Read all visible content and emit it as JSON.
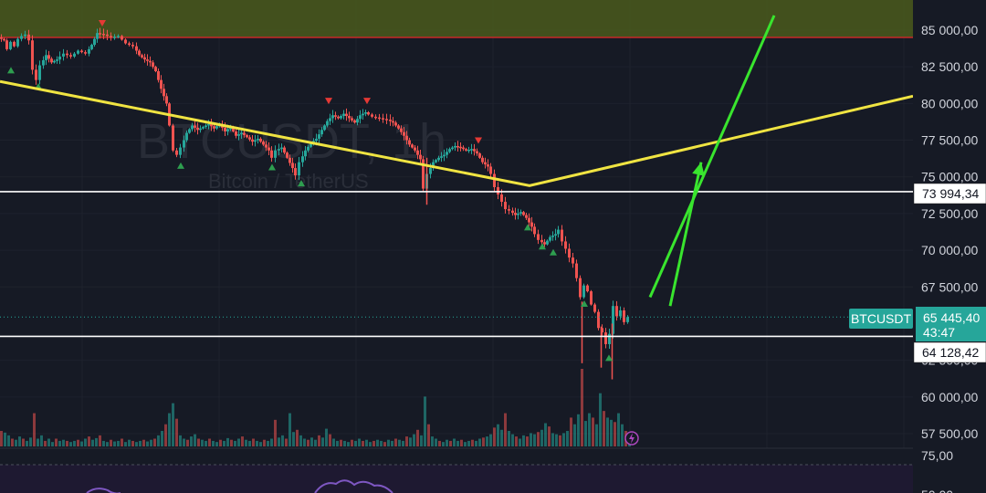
{
  "watermark": {
    "symbol": "BTCUSDT, 1h",
    "name": "Bitcoin / TetherUS"
  },
  "colors": {
    "background": "#161a25",
    "bull": "#26a69a",
    "bear": "#ef5350",
    "trendline": "#f0e442",
    "arrow": "#39e52e",
    "zone_fill": "#4a5a1c",
    "zone_border": "#c62828",
    "level_line": "#ffffff",
    "rsi_band": "#1f1a33",
    "rsi_line": "#7e57c2"
  },
  "price_axis": {
    "ticks": [
      {
        "value": 85000,
        "label": "85 000,00"
      },
      {
        "value": 82500,
        "label": "82 500,00"
      },
      {
        "value": 80000,
        "label": "80 000,00"
      },
      {
        "value": 77500,
        "label": "77 500,00"
      },
      {
        "value": 75000,
        "label": "75 000,00"
      },
      {
        "value": 72500,
        "label": "72 500,00"
      },
      {
        "value": 70000,
        "label": "70 000,00"
      },
      {
        "value": 67500,
        "label": "67 500,00"
      },
      {
        "value": 62500,
        "label": "62 500,00"
      },
      {
        "value": 60000,
        "label": "60 000,00"
      },
      {
        "value": 57500,
        "label": "57 500,00"
      }
    ],
    "rsi_ticks": [
      {
        "value": 75,
        "label": "75,00"
      },
      {
        "value": 50,
        "label": "50,00"
      }
    ]
  },
  "price_tags": [
    {
      "id": "level-upper",
      "value": 73994.34,
      "label": "73 994,34",
      "style": "white"
    },
    {
      "id": "level-lower",
      "value": 64128.42,
      "label": "64 128,42",
      "style": "white"
    }
  ],
  "current_price": {
    "symbol": "BTCUSDT",
    "value": 65445.4,
    "label": "65 445,40",
    "countdown": "43:47"
  },
  "chart_data": {
    "type": "candlestick",
    "title": "BTCUSDT, 1h",
    "subtitle": "Bitcoin / TetherUS",
    "ylim": [
      56500,
      86000
    ],
    "close_path": [
      [
        0,
        84500
      ],
      [
        6,
        84300
      ],
      [
        10,
        83700
      ],
      [
        14,
        84200
      ],
      [
        18,
        83900
      ],
      [
        22,
        84400
      ],
      [
        26,
        84600
      ],
      [
        30,
        84700
      ],
      [
        34,
        84300
      ],
      [
        38,
        82300
      ],
      [
        42,
        81600
      ],
      [
        46,
        82600
      ],
      [
        52,
        83300
      ],
      [
        58,
        82800
      ],
      [
        64,
        83000
      ],
      [
        72,
        83400
      ],
      [
        80,
        83200
      ],
      [
        88,
        83600
      ],
      [
        96,
        83400
      ],
      [
        102,
        84000
      ],
      [
        108,
        84800
      ],
      [
        116,
        84700
      ],
      [
        124,
        84500
      ],
      [
        132,
        84600
      ],
      [
        140,
        84100
      ],
      [
        148,
        83900
      ],
      [
        154,
        83300
      ],
      [
        160,
        83000
      ],
      [
        166,
        82800
      ],
      [
        172,
        82200
      ],
      [
        178,
        81000
      ],
      [
        184,
        80000
      ],
      [
        188,
        78500
      ],
      [
        192,
        76800
      ],
      [
        196,
        76500
      ],
      [
        200,
        77000
      ],
      [
        206,
        78000
      ],
      [
        212,
        78500
      ],
      [
        218,
        78200
      ],
      [
        224,
        78400
      ],
      [
        230,
        78600
      ],
      [
        236,
        78300
      ],
      [
        242,
        78600
      ],
      [
        248,
        78100
      ],
      [
        254,
        78400
      ],
      [
        260,
        77800
      ],
      [
        266,
        78000
      ],
      [
        272,
        77700
      ],
      [
        278,
        77400
      ],
      [
        284,
        77600
      ],
      [
        290,
        77200
      ],
      [
        296,
        76800
      ],
      [
        300,
        76300
      ],
      [
        304,
        76800
      ],
      [
        310,
        77000
      ],
      [
        316,
        76300
      ],
      [
        322,
        75600
      ],
      [
        326,
        75100
      ],
      [
        330,
        76000
      ],
      [
        336,
        76800
      ],
      [
        342,
        77300
      ],
      [
        348,
        77600
      ],
      [
        354,
        78200
      ],
      [
        360,
        78800
      ],
      [
        366,
        79200
      ],
      [
        372,
        79000
      ],
      [
        378,
        79300
      ],
      [
        384,
        79000
      ],
      [
        390,
        78700
      ],
      [
        396,
        79200
      ],
      [
        402,
        79400
      ],
      [
        410,
        79100
      ],
      [
        418,
        79000
      ],
      [
        426,
        78900
      ],
      [
        432,
        78700
      ],
      [
        438,
        78300
      ],
      [
        444,
        77800
      ],
      [
        450,
        77200
      ],
      [
        456,
        76800
      ],
      [
        462,
        76200
      ],
      [
        466,
        74200
      ],
      [
        470,
        75200
      ],
      [
        476,
        76000
      ],
      [
        482,
        76300
      ],
      [
        488,
        76500
      ],
      [
        494,
        76900
      ],
      [
        500,
        77100
      ],
      [
        506,
        77000
      ],
      [
        512,
        76800
      ],
      [
        518,
        76900
      ],
      [
        524,
        76600
      ],
      [
        530,
        76000
      ],
      [
        536,
        75700
      ],
      [
        540,
        75200
      ],
      [
        544,
        74300
      ],
      [
        548,
        73800
      ],
      [
        552,
        73300
      ],
      [
        556,
        72800
      ],
      [
        560,
        72700
      ],
      [
        566,
        72400
      ],
      [
        572,
        72600
      ],
      [
        578,
        72200
      ],
      [
        584,
        71600
      ],
      [
        588,
        71100
      ],
      [
        592,
        70700
      ],
      [
        598,
        70400
      ],
      [
        604,
        70900
      ],
      [
        610,
        71100
      ],
      [
        614,
        71400
      ],
      [
        618,
        70600
      ],
      [
        622,
        70100
      ],
      [
        626,
        69500
      ],
      [
        630,
        69100
      ],
      [
        634,
        68100
      ],
      [
        638,
        66800
      ],
      [
        642,
        67600
      ],
      [
        646,
        67200
      ],
      [
        650,
        66300
      ],
      [
        654,
        65800
      ],
      [
        658,
        64700
      ],
      [
        662,
        64400
      ],
      [
        666,
        63600
      ],
      [
        670,
        64300
      ],
      [
        674,
        66200
      ],
      [
        678,
        65500
      ],
      [
        682,
        65900
      ],
      [
        686,
        65100
      ],
      [
        690,
        65445
      ]
    ],
    "volume": [
      [
        0,
        28
      ],
      [
        4,
        25
      ],
      [
        8,
        20
      ],
      [
        12,
        14
      ],
      [
        16,
        12
      ],
      [
        20,
        18
      ],
      [
        24,
        14
      ],
      [
        28,
        10
      ],
      [
        32,
        16
      ],
      [
        36,
        60
      ],
      [
        40,
        14
      ],
      [
        44,
        20
      ],
      [
        48,
        10
      ],
      [
        52,
        14
      ],
      [
        56,
        8
      ],
      [
        60,
        14
      ],
      [
        64,
        10
      ],
      [
        68,
        12
      ],
      [
        72,
        10
      ],
      [
        76,
        8
      ],
      [
        80,
        10
      ],
      [
        84,
        12
      ],
      [
        88,
        9
      ],
      [
        92,
        14
      ],
      [
        96,
        18
      ],
      [
        100,
        12
      ],
      [
        104,
        15
      ],
      [
        108,
        20
      ],
      [
        112,
        10
      ],
      [
        116,
        8
      ],
      [
        120,
        12
      ],
      [
        124,
        9
      ],
      [
        128,
        10
      ],
      [
        132,
        14
      ],
      [
        136,
        8
      ],
      [
        140,
        12
      ],
      [
        144,
        10
      ],
      [
        148,
        8
      ],
      [
        152,
        10
      ],
      [
        156,
        12
      ],
      [
        160,
        9
      ],
      [
        164,
        12
      ],
      [
        168,
        14
      ],
      [
        172,
        20
      ],
      [
        176,
        28
      ],
      [
        180,
        40
      ],
      [
        184,
        60
      ],
      [
        188,
        78
      ],
      [
        192,
        50
      ],
      [
        196,
        20
      ],
      [
        200,
        14
      ],
      [
        204,
        12
      ],
      [
        208,
        18
      ],
      [
        212,
        22
      ],
      [
        216,
        14
      ],
      [
        220,
        12
      ],
      [
        224,
        10
      ],
      [
        228,
        14
      ],
      [
        232,
        10
      ],
      [
        236,
        8
      ],
      [
        240,
        12
      ],
      [
        244,
        10
      ],
      [
        248,
        15
      ],
      [
        252,
        12
      ],
      [
        256,
        10
      ],
      [
        260,
        14
      ],
      [
        264,
        18
      ],
      [
        268,
        12
      ],
      [
        272,
        10
      ],
      [
        276,
        14
      ],
      [
        280,
        10
      ],
      [
        284,
        8
      ],
      [
        288,
        12
      ],
      [
        292,
        10
      ],
      [
        296,
        14
      ],
      [
        300,
        48
      ],
      [
        304,
        16
      ],
      [
        308,
        20
      ],
      [
        312,
        14
      ],
      [
        316,
        60
      ],
      [
        320,
        26
      ],
      [
        324,
        30
      ],
      [
        328,
        20
      ],
      [
        332,
        14
      ],
      [
        336,
        12
      ],
      [
        340,
        16
      ],
      [
        344,
        12
      ],
      [
        348,
        20
      ],
      [
        352,
        16
      ],
      [
        356,
        32
      ],
      [
        360,
        22
      ],
      [
        364,
        14
      ],
      [
        368,
        10
      ],
      [
        372,
        12
      ],
      [
        376,
        10
      ],
      [
        380,
        8
      ],
      [
        384,
        12
      ],
      [
        388,
        10
      ],
      [
        392,
        14
      ],
      [
        396,
        10
      ],
      [
        400,
        12
      ],
      [
        404,
        8
      ],
      [
        408,
        10
      ],
      [
        412,
        12
      ],
      [
        416,
        10
      ],
      [
        420,
        8
      ],
      [
        424,
        12
      ],
      [
        428,
        10
      ],
      [
        432,
        14
      ],
      [
        436,
        12
      ],
      [
        440,
        10
      ],
      [
        444,
        18
      ],
      [
        448,
        16
      ],
      [
        452,
        22
      ],
      [
        456,
        30
      ],
      [
        460,
        20
      ],
      [
        464,
        90
      ],
      [
        468,
        40
      ],
      [
        472,
        18
      ],
      [
        476,
        14
      ],
      [
        480,
        10
      ],
      [
        484,
        8
      ],
      [
        488,
        12
      ],
      [
        492,
        10
      ],
      [
        496,
        14
      ],
      [
        500,
        10
      ],
      [
        504,
        12
      ],
      [
        508,
        8
      ],
      [
        512,
        10
      ],
      [
        516,
        12
      ],
      [
        520,
        10
      ],
      [
        524,
        14
      ],
      [
        528,
        16
      ],
      [
        532,
        18
      ],
      [
        536,
        22
      ],
      [
        540,
        34
      ],
      [
        544,
        40
      ],
      [
        548,
        30
      ],
      [
        552,
        60
      ],
      [
        556,
        28
      ],
      [
        560,
        22
      ],
      [
        564,
        18
      ],
      [
        568,
        14
      ],
      [
        572,
        20
      ],
      [
        576,
        18
      ],
      [
        580,
        24
      ],
      [
        584,
        22
      ],
      [
        588,
        26
      ],
      [
        592,
        30
      ],
      [
        596,
        42
      ],
      [
        600,
        36
      ],
      [
        604,
        24
      ],
      [
        608,
        22
      ],
      [
        612,
        20
      ],
      [
        616,
        24
      ],
      [
        620,
        28
      ],
      [
        624,
        52
      ],
      [
        628,
        40
      ],
      [
        632,
        58
      ],
      [
        636,
        140
      ],
      [
        640,
        46
      ],
      [
        644,
        60
      ],
      [
        648,
        52
      ],
      [
        652,
        40
      ],
      [
        656,
        96
      ],
      [
        660,
        64
      ],
      [
        664,
        52
      ],
      [
        668,
        48
      ],
      [
        672,
        44
      ],
      [
        676,
        60
      ],
      [
        680,
        40
      ],
      [
        684,
        28
      ],
      [
        688,
        18
      ]
    ],
    "volume_max": 140,
    "signals": [
      {
        "x": 12,
        "type": "buy",
        "price": 82300
      },
      {
        "x": 42,
        "type": "buy",
        "price": 81200
      },
      {
        "x": 112,
        "type": "sell",
        "price": 85500
      },
      {
        "x": 198,
        "type": "buy",
        "price": 75800
      },
      {
        "x": 298,
        "type": "buy",
        "price": 75700
      },
      {
        "x": 330,
        "type": "buy",
        "price": 74600
      },
      {
        "x": 360,
        "type": "sell",
        "price": 80200
      },
      {
        "x": 402,
        "type": "sell",
        "price": 80200
      },
      {
        "x": 524,
        "type": "sell",
        "price": 77500
      },
      {
        "x": 578,
        "type": "buy",
        "price": 71600
      },
      {
        "x": 594,
        "type": "buy",
        "price": 70300
      },
      {
        "x": 606,
        "type": "buy",
        "price": 69900
      },
      {
        "x": 640,
        "type": "buy",
        "price": 66400
      },
      {
        "x": 667,
        "type": "buy",
        "price": 62700
      }
    ],
    "resistance_zone": {
      "low": 84500,
      "high": 86000
    },
    "horizontal_levels": [
      73994.34,
      64128.42
    ],
    "trendline": [
      {
        "x": 0,
        "price": 81500
      },
      {
        "x": 580,
        "price": 74400
      },
      {
        "x": 1000,
        "price": 80500
      }
    ],
    "arrows": [
      {
        "from": {
          "x": 712,
          "price": 66800
        },
        "to": {
          "x": 848,
          "price": 86000
        }
      },
      {
        "from": {
          "x": 734,
          "price": 66200
        },
        "to": {
          "x": 768,
          "price": 76000
        }
      }
    ],
    "rsi": {
      "visible_ticks": [
        75
      ],
      "band": [
        70,
        75
      ]
    }
  }
}
